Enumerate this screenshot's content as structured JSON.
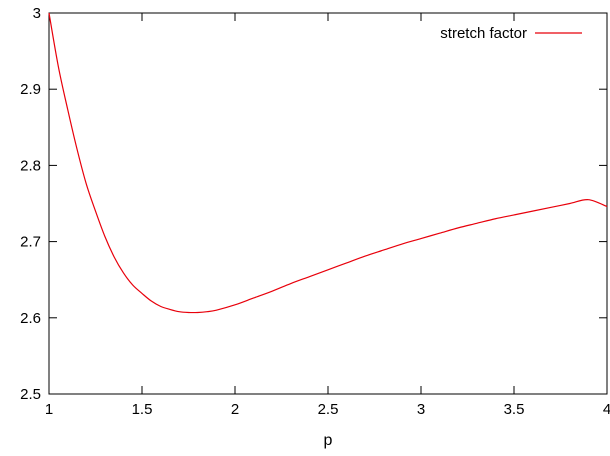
{
  "chart_data": {
    "type": "line",
    "title": "",
    "xlabel": "p",
    "ylabel": "",
    "xlim": [
      1,
      4
    ],
    "ylim": [
      2.5,
      3
    ],
    "xticks": [
      "1",
      "1.5",
      "2",
      "2.5",
      "3",
      "3.5",
      "4"
    ],
    "yticks": [
      "2.5",
      "2.6",
      "2.7",
      "2.8",
      "2.9",
      "3"
    ],
    "grid": false,
    "legend_position": "top-right",
    "series": [
      {
        "name": "stretch factor",
        "color": "#e8000b",
        "x": [
          1.0,
          1.05,
          1.1,
          1.15,
          1.2,
          1.25,
          1.3,
          1.35,
          1.4,
          1.45,
          1.5,
          1.55,
          1.6,
          1.65,
          1.7,
          1.75,
          1.8,
          1.85,
          1.9,
          2.0,
          2.1,
          2.2,
          2.3,
          2.4,
          2.5,
          2.6,
          2.7,
          2.8,
          2.9,
          3.0,
          3.1,
          3.2,
          3.3,
          3.4,
          3.5,
          3.6,
          3.7,
          3.8,
          3.9,
          4.0
        ],
        "y": [
          3.0,
          2.93,
          2.874,
          2.822,
          2.776,
          2.74,
          2.707,
          2.68,
          2.659,
          2.643,
          2.632,
          2.622,
          2.615,
          2.611,
          2.608,
          2.607,
          2.607,
          2.608,
          2.61,
          2.617,
          2.626,
          2.635,
          2.645,
          2.654,
          2.663,
          2.672,
          2.681,
          2.689,
          2.697,
          2.704,
          2.711,
          2.718,
          2.724,
          2.73,
          2.735,
          2.74,
          2.745,
          2.75,
          2.755,
          2.746
        ]
      }
    ]
  }
}
